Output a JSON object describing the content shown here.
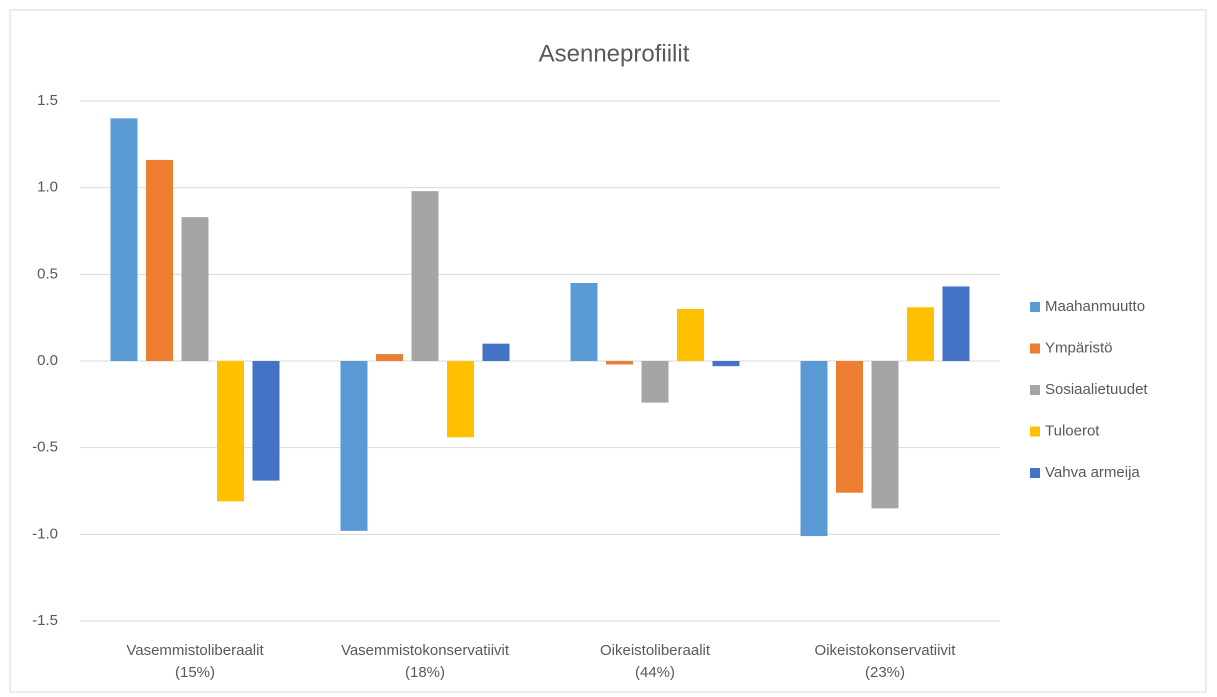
{
  "chart_data": {
    "type": "bar",
    "title": "Asenneprofiilit",
    "categories": [
      "Vasemmistoliberaalit (15%)",
      "Vasemmistokonservatiivit (18%)",
      "Oikeistoliberaalit (44%)",
      "Oikeistokonservatiivit (23%)"
    ],
    "series": [
      {
        "name": "Maahanmuutto",
        "color": "#5b9bd5",
        "values": [
          1.4,
          -0.98,
          0.45,
          -1.01
        ]
      },
      {
        "name": "Ympäristö",
        "color": "#ed7d31",
        "values": [
          1.16,
          0.04,
          -0.02,
          -0.76
        ]
      },
      {
        "name": "Sosiaalietuudet",
        "color": "#a5a5a5",
        "values": [
          0.83,
          0.98,
          -0.24,
          -0.85
        ]
      },
      {
        "name": "Tuloerot",
        "color": "#ffc000",
        "values": [
          -0.81,
          -0.44,
          0.3,
          0.31
        ]
      },
      {
        "name": "Vahva armeija",
        "color": "#4472c4",
        "values": [
          -0.69,
          0.1,
          -0.03,
          0.43
        ]
      }
    ],
    "ylim": [
      -1.5,
      1.5
    ],
    "yticks": [
      -1.5,
      {
        "value": -1,
        "label": "-1.0"
      },
      -0.5,
      {
        "value": 0,
        "label": "0.0"
      },
      0.5,
      {
        "value": 1,
        "label": "1.0"
      },
      1.5
    ],
    "grid": true,
    "legend": "right"
  }
}
